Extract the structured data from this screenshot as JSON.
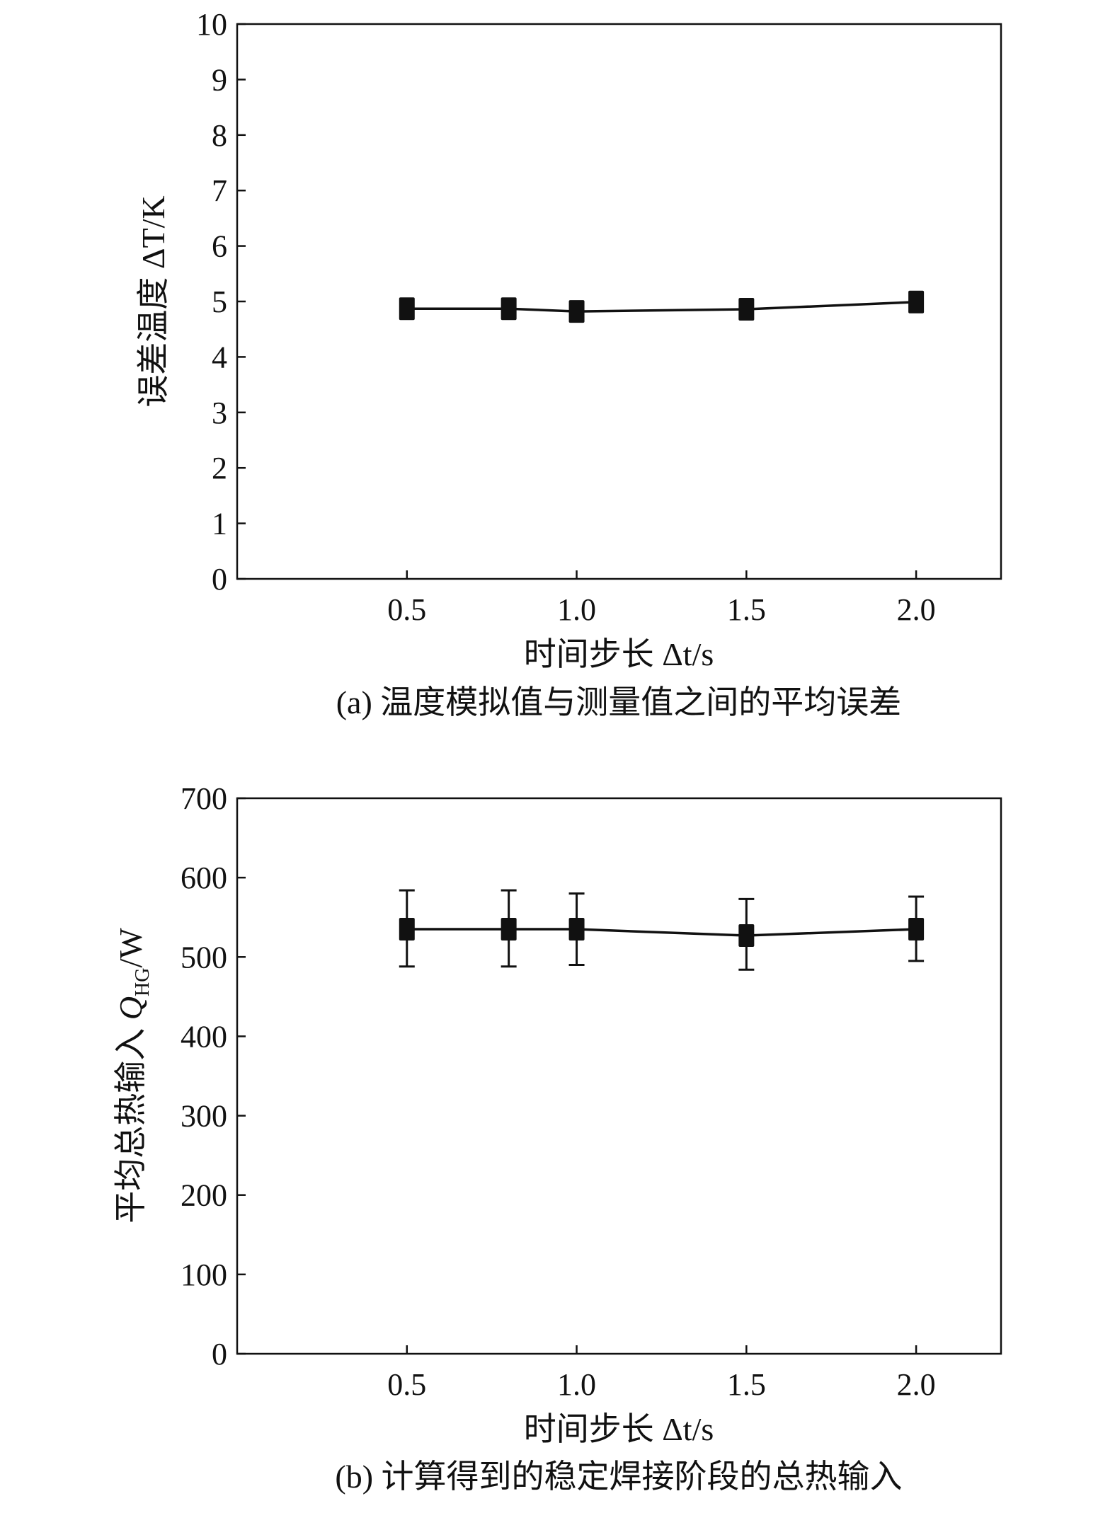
{
  "chart_data": [
    {
      "type": "line",
      "caption": "(a) 温度模拟值与测量值之间的平均误差",
      "xlabel": "时间步长 Δt/s",
      "ylabel": "误差温度 ΔT/K",
      "xlim": [
        0,
        2.25
      ],
      "ylim": [
        0,
        10
      ],
      "xticks": [
        "0.5",
        "1.0",
        "1.5",
        "2.0"
      ],
      "xtick_values": [
        0.5,
        1.0,
        1.5,
        2.0
      ],
      "yticks": [
        "0",
        "1",
        "2",
        "3",
        "4",
        "5",
        "6",
        "7",
        "8",
        "9",
        "10"
      ],
      "grid": false,
      "marker": "square",
      "color": "#111111",
      "x": [
        0.5,
        0.8,
        1.0,
        1.5,
        2.0
      ],
      "y": [
        4.87,
        4.87,
        4.82,
        4.86,
        4.99
      ]
    },
    {
      "type": "line",
      "caption": "(b) 计算得到的稳定焊接阶段的总热输入",
      "xlabel": "时间步长 Δt/s",
      "ylabel": "平均总热输入 Q_HG/W",
      "xlim": [
        0,
        2.25
      ],
      "ylim": [
        0,
        700
      ],
      "xticks": [
        "0.5",
        "1.0",
        "1.5",
        "2.0"
      ],
      "xtick_values": [
        0.5,
        1.0,
        1.5,
        2.0
      ],
      "yticks": [
        "0",
        "100",
        "200",
        "300",
        "400",
        "500",
        "600",
        "700"
      ],
      "grid": false,
      "marker": "square",
      "color": "#111111",
      "x": [
        0.5,
        0.8,
        1.0,
        1.5,
        2.0
      ],
      "y": [
        535,
        535,
        535,
        527,
        535
      ],
      "error_low": [
        488,
        488,
        490,
        484,
        495
      ],
      "error_high": [
        584,
        584,
        580,
        573,
        576
      ]
    }
  ]
}
